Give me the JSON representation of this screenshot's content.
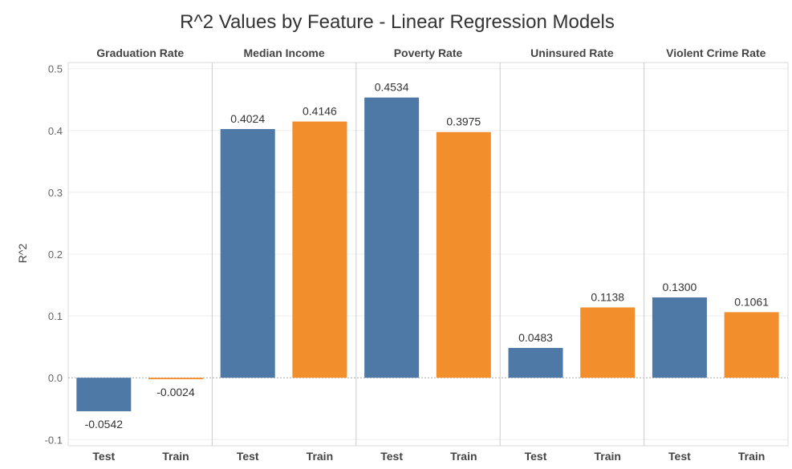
{
  "chart_data": {
    "type": "bar",
    "title": "R^2 Values by Feature - Linear Regression Models",
    "ylabel": "R^2",
    "ylim": [
      -0.11,
      0.51
    ],
    "yticks": [
      -0.1,
      0.0,
      0.1,
      0.2,
      0.3,
      0.4,
      0.5
    ],
    "ytick_labels": [
      "-0.1",
      "0.0",
      "0.1",
      "0.2",
      "0.3",
      "0.4",
      "0.5"
    ],
    "grid": true,
    "categories": [
      "Test",
      "Train"
    ],
    "panels": [
      {
        "name": "Graduation Rate",
        "values": [
          -0.0542,
          -0.0024
        ],
        "labels": [
          "-0.0542",
          "-0.0024"
        ]
      },
      {
        "name": "Median Income",
        "values": [
          0.4024,
          0.4146
        ],
        "labels": [
          "0.4024",
          "0.4146"
        ]
      },
      {
        "name": "Poverty Rate",
        "values": [
          0.4534,
          0.3975
        ],
        "labels": [
          "0.4534",
          "0.3975"
        ]
      },
      {
        "name": "Uninsured Rate",
        "values": [
          0.0483,
          0.1138
        ],
        "labels": [
          "0.0483",
          "0.1138"
        ]
      },
      {
        "name": "Violent Crime Rate",
        "values": [
          0.13,
          0.1061
        ],
        "labels": [
          "0.1300",
          "0.1061"
        ]
      }
    ],
    "colors": {
      "Test": "#4e79a7",
      "Train": "#f28e2b"
    }
  }
}
